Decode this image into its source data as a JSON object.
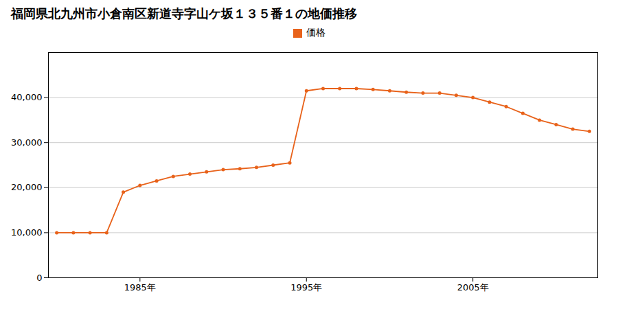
{
  "chart_data": {
    "type": "line",
    "title": "福岡県北九州市小倉南区新道寺字山ケ坂１３５番１の地価推移",
    "x": [
      1980,
      1981,
      1982,
      1983,
      1984,
      1985,
      1986,
      1987,
      1988,
      1989,
      1990,
      1991,
      1992,
      1993,
      1994,
      1995,
      1996,
      1997,
      1998,
      1999,
      2000,
      2001,
      2002,
      2003,
      2004,
      2005,
      2006,
      2007,
      2008,
      2009,
      2010,
      2011,
      2012
    ],
    "series": [
      {
        "name": "価格",
        "color": "#E8621A",
        "marker": "circle",
        "values": [
          10000,
          10000,
          10000,
          10000,
          19000,
          20500,
          21500,
          22500,
          23000,
          23500,
          24000,
          24200,
          24500,
          25000,
          25500,
          41500,
          42000,
          42000,
          42000,
          41800,
          41500,
          41200,
          41000,
          41000,
          40500,
          40000,
          39000,
          38000,
          36500,
          35000,
          34000,
          33000,
          32500
        ]
      }
    ],
    "xlim": [
      1979.5,
      2012.5
    ],
    "xticks": [
      {
        "value": 1985,
        "label": "1985年"
      },
      {
        "value": 1995,
        "label": "1995年"
      },
      {
        "value": 2005,
        "label": "2005年"
      }
    ],
    "ylim": [
      0,
      50000
    ],
    "yticks": [
      0,
      {
        "value": 10000,
        "label": "10,000"
      },
      {
        "value": 20000,
        "label": "20,000"
      },
      {
        "value": 30000,
        "label": "30,000"
      },
      {
        "value": 40000,
        "label": "40,000"
      }
    ],
    "grid": true,
    "legend": "top"
  }
}
